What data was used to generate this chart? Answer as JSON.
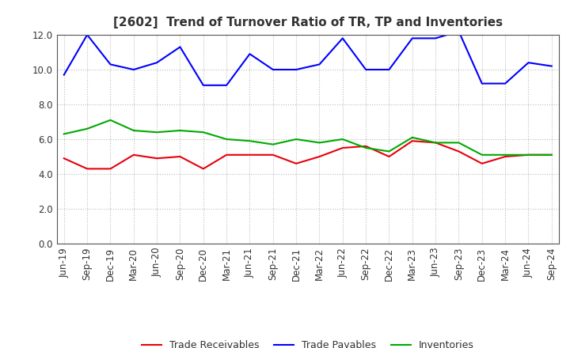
{
  "title": "[2602]  Trend of Turnover Ratio of TR, TP and Inventories",
  "labels": [
    "Jun-19",
    "Sep-19",
    "Dec-19",
    "Mar-20",
    "Jun-20",
    "Sep-20",
    "Dec-20",
    "Mar-21",
    "Jun-21",
    "Sep-21",
    "Dec-21",
    "Mar-22",
    "Jun-22",
    "Sep-22",
    "Dec-22",
    "Mar-23",
    "Jun-23",
    "Sep-23",
    "Dec-23",
    "Mar-24",
    "Jun-24",
    "Sep-24"
  ],
  "trade_receivables": [
    4.9,
    4.3,
    4.3,
    5.1,
    4.9,
    5.0,
    4.3,
    5.1,
    5.1,
    5.1,
    4.6,
    5.0,
    5.5,
    5.6,
    5.0,
    5.9,
    5.8,
    5.3,
    4.6,
    5.0,
    5.1,
    5.1
  ],
  "trade_payables": [
    9.7,
    12.0,
    10.3,
    10.0,
    10.4,
    11.3,
    9.1,
    9.1,
    10.9,
    10.0,
    10.0,
    10.3,
    11.8,
    10.0,
    10.0,
    11.8,
    11.8,
    12.2,
    9.2,
    9.2,
    10.4,
    10.2
  ],
  "inventories": [
    6.3,
    6.6,
    7.1,
    6.5,
    6.4,
    6.5,
    6.4,
    6.0,
    5.9,
    5.7,
    6.0,
    5.8,
    6.0,
    5.5,
    5.3,
    6.1,
    5.8,
    5.8,
    5.1,
    5.1,
    5.1,
    5.1
  ],
  "tr_color": "#e8000b",
  "tp_color": "#0000ff",
  "inv_color": "#00aa00",
  "ylim": [
    0.0,
    12.0
  ],
  "yticks": [
    0.0,
    2.0,
    4.0,
    6.0,
    8.0,
    10.0,
    12.0
  ],
  "legend_labels": [
    "Trade Receivables",
    "Trade Payables",
    "Inventories"
  ],
  "bg_color": "#ffffff",
  "plot_bg_color": "#ffffff",
  "grid_color": "#aaaaaa",
  "title_color": "#333333",
  "title_fontsize": 11,
  "legend_fontsize": 9,
  "tick_fontsize": 8.5
}
